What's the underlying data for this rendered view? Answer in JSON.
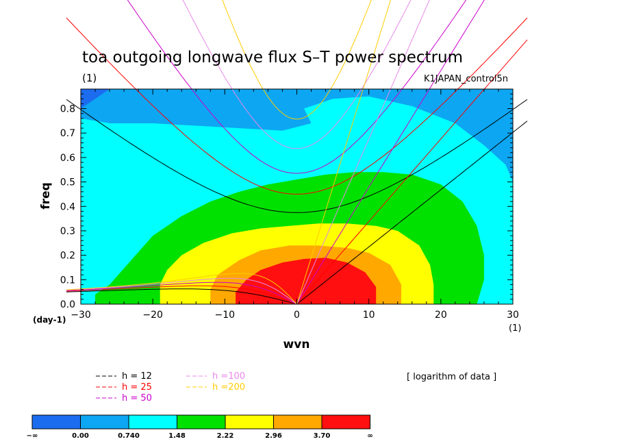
{
  "chart_data": {
    "type": "heatmap",
    "title": "toa outgoing longwave flux S–T power spectrum",
    "unit_label": "(1)",
    "case_label": "K1JAPAN_control5n",
    "xlabel": "wvn",
    "ylabel": "freq",
    "x_unit": "(1)",
    "y_unit": "(day-1)",
    "xlim": [
      -30,
      30
    ],
    "ylim": [
      0.0,
      0.88
    ],
    "x_ticks": [
      "−30",
      "−20",
      "−10",
      "0",
      "10",
      "20",
      "30"
    ],
    "x_tick_values": [
      -30,
      -20,
      -10,
      0,
      10,
      20,
      30
    ],
    "y_ticks": [
      "0.0",
      "0.1",
      "0.2",
      "0.3",
      "0.4",
      "0.5",
      "0.6",
      "0.7",
      "0.8"
    ],
    "y_tick_values": [
      0.0,
      0.1,
      0.2,
      0.3,
      0.4,
      0.5,
      0.6,
      0.7,
      0.8
    ],
    "note": "[ logarithm of data ]",
    "colorbar": {
      "labels": [
        "−∞",
        "0.00",
        "0.740",
        "1.48",
        "2.22",
        "2.96",
        "3.70",
        "∞"
      ],
      "colors": [
        "#1c6cf0",
        "#0da6f2",
        "#00ffff",
        "#00e100",
        "#ffff00",
        "#ffa800",
        "#ff0f0f"
      ]
    },
    "filled_contours": [
      {
        "level": "1.48",
        "color": "#00e100",
        "boundary": [
          [
            -28,
            0
          ],
          [
            -28,
            0.04
          ],
          [
            -26,
            0.08
          ],
          [
            -23,
            0.18
          ],
          [
            -20,
            0.28
          ],
          [
            -16,
            0.36
          ],
          [
            -12,
            0.42
          ],
          [
            -8,
            0.46
          ],
          [
            -4,
            0.49
          ],
          [
            0,
            0.51
          ],
          [
            4,
            0.53
          ],
          [
            8,
            0.54
          ],
          [
            12,
            0.54
          ],
          [
            16,
            0.53
          ],
          [
            20,
            0.49
          ],
          [
            23,
            0.42
          ],
          [
            25,
            0.32
          ],
          [
            26,
            0.2
          ],
          [
            26,
            0.1
          ],
          [
            25,
            0
          ]
        ]
      },
      {
        "level": "2.22",
        "color": "#ffff00",
        "boundary": [
          [
            -19,
            0
          ],
          [
            -19,
            0.08
          ],
          [
            -18,
            0.14
          ],
          [
            -16,
            0.2
          ],
          [
            -13,
            0.25
          ],
          [
            -9,
            0.29
          ],
          [
            -5,
            0.31
          ],
          [
            -1,
            0.32
          ],
          [
            3,
            0.33
          ],
          [
            7,
            0.33
          ],
          [
            11,
            0.32
          ],
          [
            14,
            0.3
          ],
          [
            17,
            0.24
          ],
          [
            18.5,
            0.16
          ],
          [
            19,
            0.08
          ],
          [
            19,
            0
          ]
        ]
      },
      {
        "level": "2.96",
        "color": "#ffa800",
        "boundary": [
          [
            -12,
            0
          ],
          [
            -12,
            0.06
          ],
          [
            -11,
            0.12
          ],
          [
            -8,
            0.18
          ],
          [
            -5,
            0.22
          ],
          [
            -1,
            0.24
          ],
          [
            3,
            0.24
          ],
          [
            7,
            0.23
          ],
          [
            10,
            0.21
          ],
          [
            13,
            0.16
          ],
          [
            14.5,
            0.08
          ],
          [
            14.5,
            0
          ]
        ]
      },
      {
        "level": "3.70",
        "color": "#ff0f0f",
        "boundary": [
          [
            -8.5,
            0
          ],
          [
            -8.5,
            0.05
          ],
          [
            -7,
            0.1
          ],
          [
            -5,
            0.14
          ],
          [
            -2,
            0.17
          ],
          [
            1,
            0.185
          ],
          [
            4,
            0.19
          ],
          [
            7,
            0.17
          ],
          [
            9.5,
            0.13
          ],
          [
            11,
            0.07
          ],
          [
            11,
            0
          ]
        ]
      }
    ],
    "series": [
      {
        "name": "h = 12",
        "color": "#000000",
        "equivalent_depth": 12
      },
      {
        "name": "h = 25",
        "color": "#ff0000",
        "equivalent_depth": 25
      },
      {
        "name": "h = 50",
        "color": "#cc00cc",
        "equivalent_depth": 50
      },
      {
        "name": "h =100",
        "color": "#e888e8",
        "equivalent_depth": 100
      },
      {
        "name": "h =200",
        "color": "#ffcc00",
        "equivalent_depth": 200
      }
    ]
  }
}
